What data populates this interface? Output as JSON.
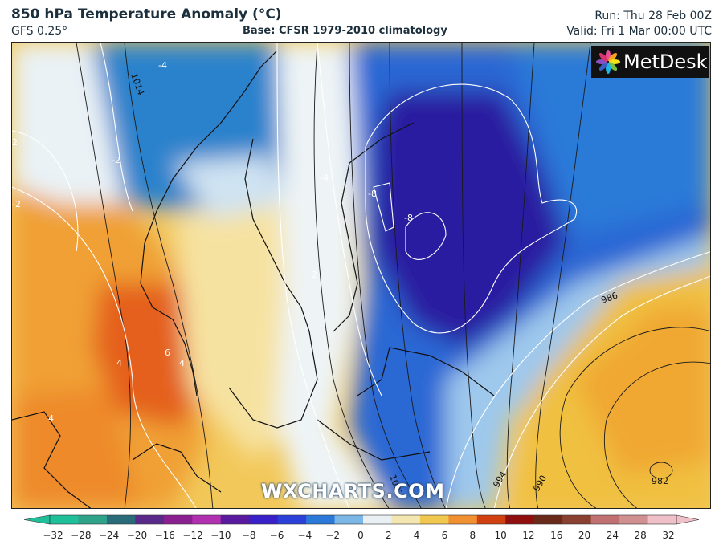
{
  "header": {
    "title": "850 hPa Temperature Anomaly (°C)",
    "model": "GFS 0.25°",
    "base": "Base: CFSR 1979-2010 climatology",
    "run": "Run: Thu 28 Feb 00Z",
    "valid": "Valid: Fri 1 Mar 00:00 UTC"
  },
  "logo": {
    "text": "MetDesk",
    "icon": "metdesk-flower-icon"
  },
  "watermark": "WXCHARTS.COM",
  "map": {
    "anomaly_labels": [
      "-4",
      "-2",
      "-4",
      "-8",
      "-8",
      "2",
      "4",
      "6",
      "4",
      "4",
      "2",
      "-2"
    ],
    "pressure_labels": [
      "1014",
      "986",
      "982",
      "994",
      "990",
      "1002"
    ]
  },
  "colorbar": {
    "ticks": [
      "-32",
      "-28",
      "-24",
      "-20",
      "-16",
      "-12",
      "-10",
      "-8",
      "-6",
      "-4",
      "-2",
      "0",
      "2",
      "4",
      "6",
      "8",
      "10",
      "12",
      "16",
      "20",
      "24",
      "28",
      "32"
    ],
    "colors": [
      "#1fbf9a",
      "#2ea38a",
      "#2a6b7a",
      "#5a2a8a",
      "#8a1f8f",
      "#b030b0",
      "#5a1aa0",
      "#3a20c8",
      "#2a40d8",
      "#2a78d8",
      "#7ab6e6",
      "#e8f0f4",
      "#f4e6b0",
      "#f0c850",
      "#f09030",
      "#d04010",
      "#901010",
      "#6a2a1a",
      "#8a4030",
      "#c07070",
      "#d09090",
      "#f0c0c8"
    ]
  }
}
